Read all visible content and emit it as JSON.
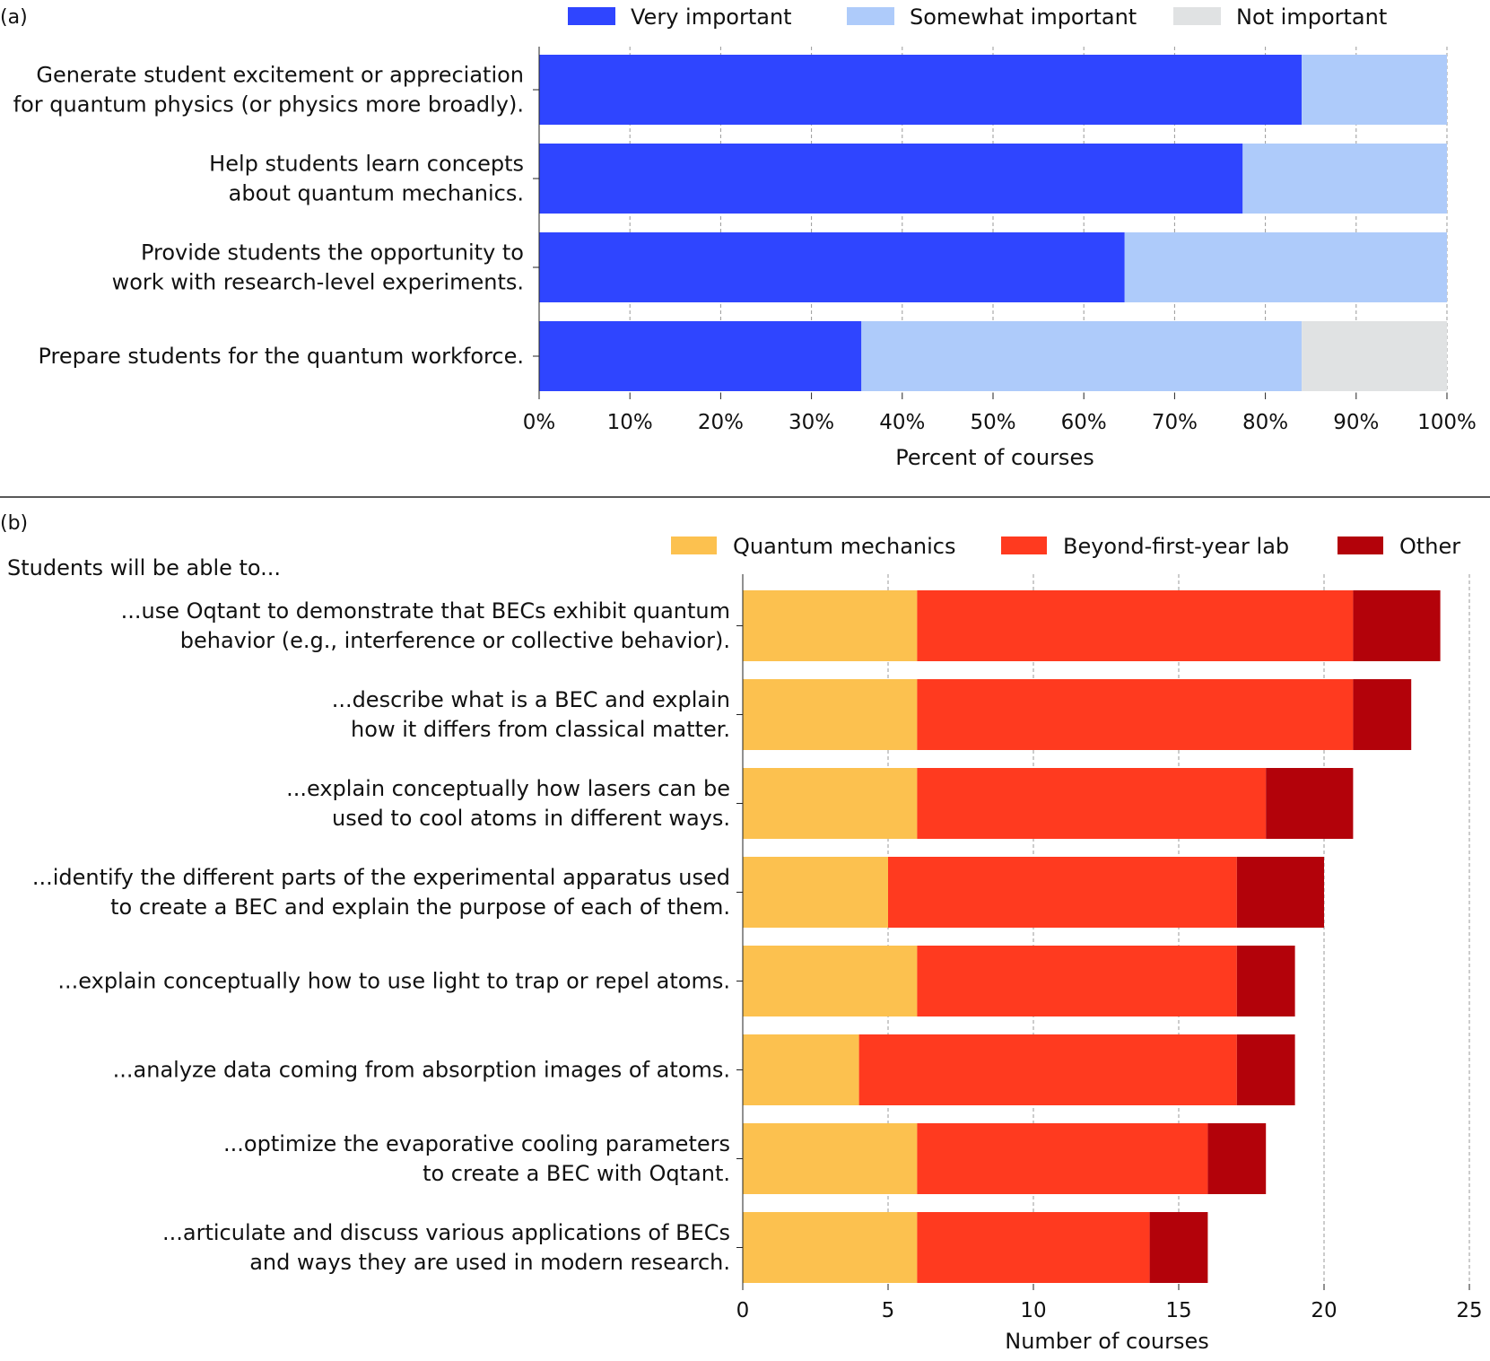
{
  "chart_data": [
    {
      "panel": "(a)",
      "type": "bar",
      "orientation": "horizontal",
      "stacked": true,
      "categories": [
        [
          "Generate student excitement or appreciation",
          "for quantum physics (or physics more broadly)."
        ],
        [
          "Help students learn concepts",
          "about quantum mechanics."
        ],
        [
          "Provide students the opportunity to",
          "work with research-level experiments."
        ],
        [
          "Prepare students for the quantum workforce."
        ]
      ],
      "series": [
        {
          "name": "Very important",
          "color": "#2f45ff",
          "values": [
            84,
            77.5,
            64.5,
            35.5
          ]
        },
        {
          "name": "Somewhat important",
          "color": "#aecbfa",
          "values": [
            16,
            22.5,
            35.5,
            48.5
          ]
        },
        {
          "name": "Not important",
          "color": "#e0e2e3",
          "values": [
            0,
            0,
            0,
            16
          ]
        }
      ],
      "xlim": [
        0,
        100
      ],
      "xticks": [
        0,
        10,
        20,
        30,
        40,
        50,
        60,
        70,
        80,
        90,
        100
      ],
      "xtick_labels": [
        "0%",
        "10%",
        "20%",
        "30%",
        "40%",
        "50%",
        "60%",
        "70%",
        "80%",
        "90%",
        "100%"
      ],
      "xlabel": "Percent of courses",
      "grid": "vertical dashed",
      "legend": "top"
    },
    {
      "panel": "(b)",
      "type": "bar",
      "orientation": "horizontal",
      "stacked": true,
      "subtitle": "Students will be able to...",
      "categories": [
        [
          "...use Oqtant to demonstrate that BECs exhibit quantum",
          "behavior (e.g., interference or collective behavior)."
        ],
        [
          "...describe what is a BEC and explain",
          "how it differs from classical matter."
        ],
        [
          "...explain conceptually how lasers can be",
          "used to cool atoms in different ways."
        ],
        [
          "...identify the different parts of the experimental apparatus used",
          "to create a BEC and explain the purpose of each of them."
        ],
        [
          "...explain conceptually how to use light to trap or repel atoms."
        ],
        [
          "...analyze data coming from absorption images of atoms."
        ],
        [
          "...optimize the evaporative cooling parameters",
          "to create a BEC with Oqtant."
        ],
        [
          "...articulate and discuss various applications of BECs",
          "and ways they are used in modern research."
        ]
      ],
      "series": [
        {
          "name": "Quantum mechanics",
          "color": "#fcc14f",
          "values": [
            6,
            6,
            6,
            5,
            6,
            4,
            6,
            6
          ]
        },
        {
          "name": "Beyond-first-year lab",
          "color": "#ff3a1f",
          "values": [
            15,
            15,
            12,
            12,
            11,
            13,
            10,
            8
          ]
        },
        {
          "name": "Other",
          "color": "#b3020a",
          "values": [
            3,
            2,
            3,
            3,
            2,
            2,
            2,
            2
          ]
        }
      ],
      "xlim": [
        0,
        25
      ],
      "xticks": [
        0,
        5,
        10,
        15,
        20,
        25
      ],
      "xtick_labels": [
        "0",
        "5",
        "10",
        "15",
        "20",
        "25"
      ],
      "xlabel": "Number of courses",
      "grid": "vertical dashed",
      "legend": "top-right"
    }
  ]
}
